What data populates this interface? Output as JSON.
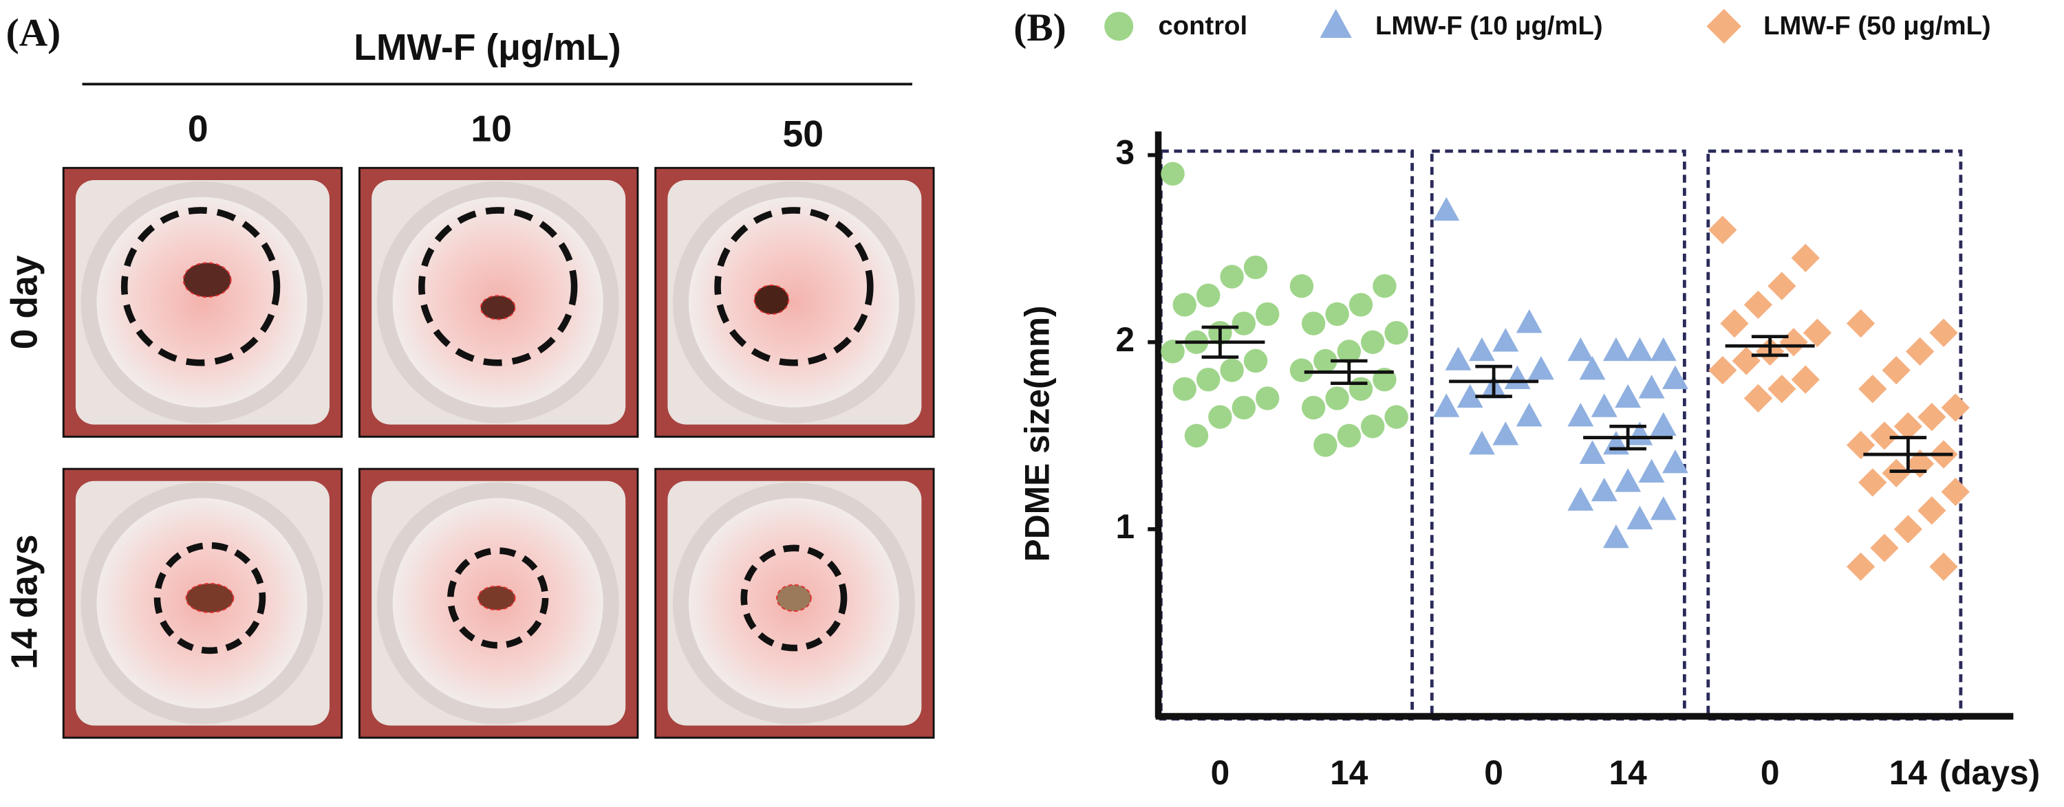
{
  "panel_a": {
    "label": "(A)",
    "title": "LMW-F (μg/mL)",
    "columns": [
      "0",
      "10",
      "50"
    ],
    "rows": [
      "0 day",
      "14 days"
    ]
  },
  "chart_data": {
    "type": "scatter",
    "panel_label": "(B)",
    "y_label": "PDME size(mm)",
    "x_label": "(days)",
    "categories": [
      "0",
      "14",
      "0",
      "14",
      "0",
      "14"
    ],
    "ylim": [
      0,
      3
    ],
    "yticks": [
      1,
      2,
      3
    ],
    "series": [
      {
        "name": "control",
        "color": "#9fd58a",
        "marker": "circle",
        "groups": [
          {
            "values": [
              2.9,
              2.4,
              2.35,
              2.25,
              2.2,
              2.15,
              2.1,
              2.05,
              2.0,
              1.95,
              1.9,
              1.85,
              1.8,
              1.75,
              1.7,
              1.65,
              1.6,
              1.5
            ],
            "mean": 2.0,
            "sem": 0.08
          },
          {
            "values": [
              2.3,
              2.3,
              2.2,
              2.15,
              2.1,
              2.05,
              2.0,
              1.95,
              1.9,
              1.85,
              1.8,
              1.75,
              1.7,
              1.65,
              1.6,
              1.55,
              1.5,
              1.45
            ],
            "mean": 1.84,
            "sem": 0.06
          }
        ]
      },
      {
        "name": "LMW-F (10 μg/mL)",
        "color": "#8fb0e0",
        "marker": "triangle",
        "groups": [
          {
            "values": [
              2.7,
              2.1,
              2.0,
              1.95,
              1.9,
              1.85,
              1.8,
              1.75,
              1.7,
              1.65,
              1.6,
              1.5,
              1.45
            ],
            "mean": 1.79,
            "sem": 0.08
          },
          {
            "values": [
              1.95,
              1.95,
              1.95,
              1.95,
              1.85,
              1.8,
              1.75,
              1.7,
              1.65,
              1.6,
              1.55,
              1.5,
              1.45,
              1.4,
              1.35,
              1.3,
              1.25,
              1.2,
              1.15,
              1.1,
              1.05,
              0.95
            ],
            "mean": 1.49,
            "sem": 0.06
          }
        ]
      },
      {
        "name": "LMW-F (50 μg/mL)",
        "color": "#f5b080",
        "marker": "diamond",
        "groups": [
          {
            "values": [
              2.6,
              2.45,
              2.3,
              2.2,
              2.1,
              2.05,
              2.0,
              1.95,
              1.9,
              1.85,
              1.8,
              1.75,
              1.7
            ],
            "mean": 1.98,
            "sem": 0.05
          },
          {
            "values": [
              2.1,
              2.05,
              1.95,
              1.85,
              1.75,
              1.65,
              1.6,
              1.55,
              1.5,
              1.45,
              1.4,
              1.35,
              1.3,
              1.25,
              1.2,
              1.1,
              1.0,
              0.9,
              0.8,
              0.8
            ],
            "mean": 1.4,
            "sem": 0.09
          }
        ]
      }
    ]
  }
}
